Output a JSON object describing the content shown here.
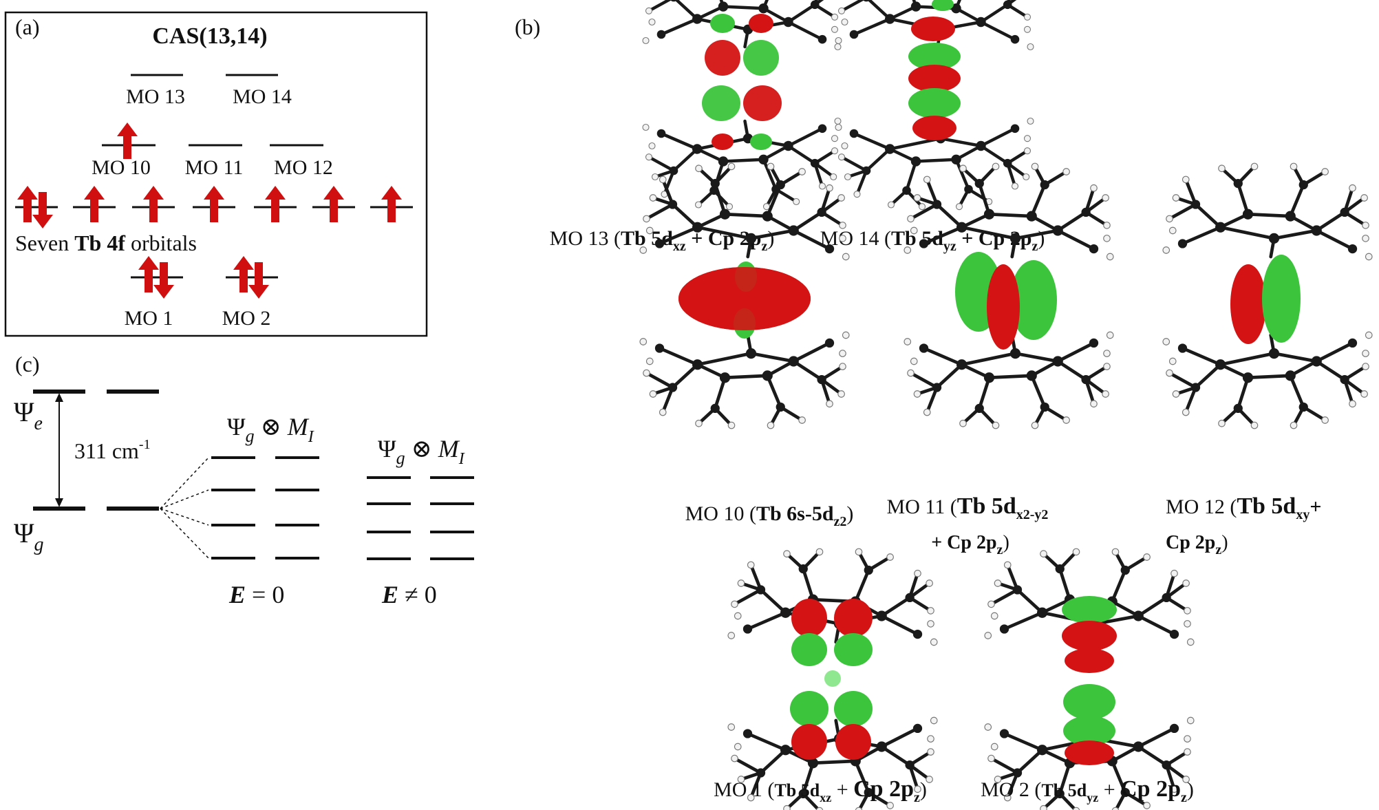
{
  "panel_a": {
    "label": "(a)",
    "title": "CAS(13,14)",
    "mo_labels": [
      "MO 13",
      "MO 14",
      "MO 10",
      "MO 11",
      "MO 12",
      "MO 1",
      "MO 2"
    ],
    "tb4f_prefix": "Seven ",
    "tb4f_bold": "Tb 4f",
    "tb4f_suffix": " orbitals"
  },
  "panel_b": {
    "label": "(b)",
    "captions": {
      "mo13": [
        "MO 13 (",
        "Tb 5d",
        "xz",
        " + Cp 2p",
        "z",
        ")"
      ],
      "mo14": [
        "MO 14 (",
        "Tb 5d",
        "yz",
        " + Cp 2p",
        "z",
        ")"
      ],
      "mo10": [
        "MO 10 (",
        "Tb 6s-5d",
        "z2",
        ")"
      ],
      "mo11": [
        "MO 11 (",
        "Tb 5d",
        "x2-y2",
        "+ Cp 2p",
        "z",
        ")"
      ],
      "mo12": [
        "MO 12 (",
        "Tb 5d",
        "xy",
        "+",
        "Cp 2p",
        "z",
        ")"
      ],
      "mo1": [
        "MO 1 (",
        "Tb 5d",
        "xz",
        " + ",
        "Cp 2p",
        "z",
        ")"
      ],
      "mo2": [
        "MO 2 (",
        "Tb 5d",
        "yz",
        " + ",
        "Cp 2p",
        "z",
        ")"
      ]
    }
  },
  "panel_c": {
    "label": "(c)",
    "psi_e": [
      "Ψ",
      "e"
    ],
    "psi_g": [
      "Ψ",
      "g"
    ],
    "gap": [
      "311 cm",
      "-1"
    ],
    "product_label": [
      "Ψ",
      "g",
      " ⊗ ",
      "M",
      "I"
    ],
    "e_zero": [
      "E",
      " = 0"
    ],
    "e_nonzero": [
      "E",
      " ≠ 0"
    ]
  },
  "colors": {
    "arrow_red": "#d01010",
    "lobe_red": "#d41414",
    "lobe_green": "#3cc43c",
    "bond_black": "#1a1a1a",
    "hydrogen": "#f2f2f2"
  }
}
